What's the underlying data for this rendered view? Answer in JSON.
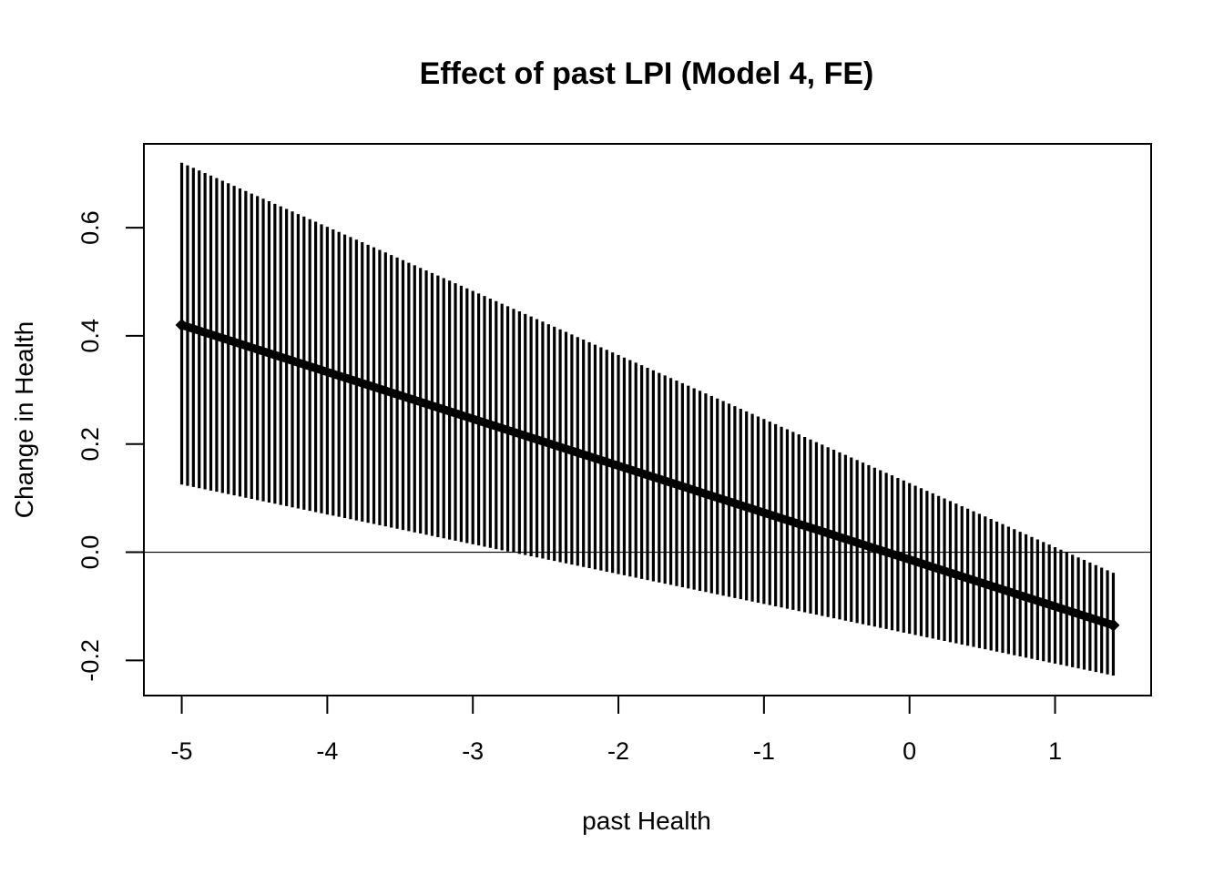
{
  "chart_data": {
    "type": "line",
    "title": "Effect of past LPI (Model 4, FE)",
    "xlabel": "past Health",
    "ylabel": "Change in Health",
    "xlim": [
      -5.26,
      1.66
    ],
    "ylim": [
      -0.265,
      0.755
    ],
    "xticks": [
      -5,
      -4,
      -3,
      -2,
      -1,
      0,
      1
    ],
    "xtick_labels": [
      "-5",
      "-4",
      "-3",
      "-2",
      "-1",
      "0",
      "1"
    ],
    "yticks": [
      -0.2,
      0.0,
      0.2,
      0.4,
      0.6
    ],
    "ytick_labels": [
      "-0.2",
      "0.0",
      "0.2",
      "0.4",
      "0.6"
    ],
    "reference_line_y": 0.0,
    "grid": false,
    "legend": "none",
    "x_start": -5.0,
    "x_end": 1.4,
    "n_points": 161,
    "estimate": {
      "start": 0.42,
      "end": -0.135
    },
    "ci_lower": {
      "start": 0.125,
      "end": -0.228
    },
    "ci_upper": {
      "start": 0.72,
      "end": -0.038
    },
    "ci_style": "vertical-bars",
    "colors": {
      "line": "#000000",
      "bars": "#000000",
      "background": "#ffffff"
    }
  }
}
